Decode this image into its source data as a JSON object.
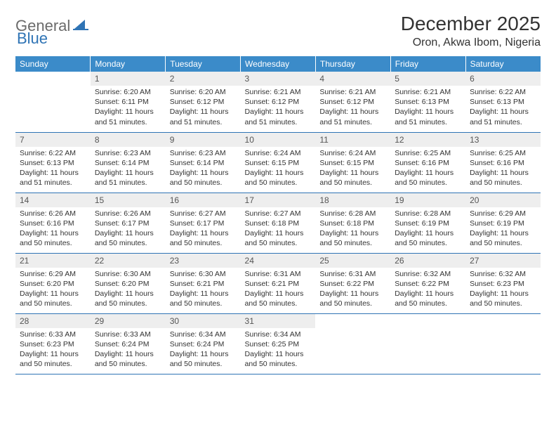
{
  "logo": {
    "text1": "General",
    "text2": "Blue"
  },
  "title": "December 2025",
  "location": "Oron, Akwa Ibom, Nigeria",
  "colors": {
    "header_bg": "#3b8bc9",
    "header_text": "#ffffff",
    "daynum_bg": "#eeeeee",
    "border": "#2f74b5",
    "body_text": "#333333",
    "logo_gray": "#6b6b6b",
    "logo_blue": "#2f74b5"
  },
  "day_headers": [
    "Sunday",
    "Monday",
    "Tuesday",
    "Wednesday",
    "Thursday",
    "Friday",
    "Saturday"
  ],
  "weeks": [
    [
      null,
      {
        "n": "1",
        "sr": "6:20 AM",
        "ss": "6:11 PM",
        "dl": "11 hours and 51 minutes."
      },
      {
        "n": "2",
        "sr": "6:20 AM",
        "ss": "6:12 PM",
        "dl": "11 hours and 51 minutes."
      },
      {
        "n": "3",
        "sr": "6:21 AM",
        "ss": "6:12 PM",
        "dl": "11 hours and 51 minutes."
      },
      {
        "n": "4",
        "sr": "6:21 AM",
        "ss": "6:12 PM",
        "dl": "11 hours and 51 minutes."
      },
      {
        "n": "5",
        "sr": "6:21 AM",
        "ss": "6:13 PM",
        "dl": "11 hours and 51 minutes."
      },
      {
        "n": "6",
        "sr": "6:22 AM",
        "ss": "6:13 PM",
        "dl": "11 hours and 51 minutes."
      }
    ],
    [
      {
        "n": "7",
        "sr": "6:22 AM",
        "ss": "6:13 PM",
        "dl": "11 hours and 51 minutes."
      },
      {
        "n": "8",
        "sr": "6:23 AM",
        "ss": "6:14 PM",
        "dl": "11 hours and 51 minutes."
      },
      {
        "n": "9",
        "sr": "6:23 AM",
        "ss": "6:14 PM",
        "dl": "11 hours and 50 minutes."
      },
      {
        "n": "10",
        "sr": "6:24 AM",
        "ss": "6:15 PM",
        "dl": "11 hours and 50 minutes."
      },
      {
        "n": "11",
        "sr": "6:24 AM",
        "ss": "6:15 PM",
        "dl": "11 hours and 50 minutes."
      },
      {
        "n": "12",
        "sr": "6:25 AM",
        "ss": "6:16 PM",
        "dl": "11 hours and 50 minutes."
      },
      {
        "n": "13",
        "sr": "6:25 AM",
        "ss": "6:16 PM",
        "dl": "11 hours and 50 minutes."
      }
    ],
    [
      {
        "n": "14",
        "sr": "6:26 AM",
        "ss": "6:16 PM",
        "dl": "11 hours and 50 minutes."
      },
      {
        "n": "15",
        "sr": "6:26 AM",
        "ss": "6:17 PM",
        "dl": "11 hours and 50 minutes."
      },
      {
        "n": "16",
        "sr": "6:27 AM",
        "ss": "6:17 PM",
        "dl": "11 hours and 50 minutes."
      },
      {
        "n": "17",
        "sr": "6:27 AM",
        "ss": "6:18 PM",
        "dl": "11 hours and 50 minutes."
      },
      {
        "n": "18",
        "sr": "6:28 AM",
        "ss": "6:18 PM",
        "dl": "11 hours and 50 minutes."
      },
      {
        "n": "19",
        "sr": "6:28 AM",
        "ss": "6:19 PM",
        "dl": "11 hours and 50 minutes."
      },
      {
        "n": "20",
        "sr": "6:29 AM",
        "ss": "6:19 PM",
        "dl": "11 hours and 50 minutes."
      }
    ],
    [
      {
        "n": "21",
        "sr": "6:29 AM",
        "ss": "6:20 PM",
        "dl": "11 hours and 50 minutes."
      },
      {
        "n": "22",
        "sr": "6:30 AM",
        "ss": "6:20 PM",
        "dl": "11 hours and 50 minutes."
      },
      {
        "n": "23",
        "sr": "6:30 AM",
        "ss": "6:21 PM",
        "dl": "11 hours and 50 minutes."
      },
      {
        "n": "24",
        "sr": "6:31 AM",
        "ss": "6:21 PM",
        "dl": "11 hours and 50 minutes."
      },
      {
        "n": "25",
        "sr": "6:31 AM",
        "ss": "6:22 PM",
        "dl": "11 hours and 50 minutes."
      },
      {
        "n": "26",
        "sr": "6:32 AM",
        "ss": "6:22 PM",
        "dl": "11 hours and 50 minutes."
      },
      {
        "n": "27",
        "sr": "6:32 AM",
        "ss": "6:23 PM",
        "dl": "11 hours and 50 minutes."
      }
    ],
    [
      {
        "n": "28",
        "sr": "6:33 AM",
        "ss": "6:23 PM",
        "dl": "11 hours and 50 minutes."
      },
      {
        "n": "29",
        "sr": "6:33 AM",
        "ss": "6:24 PM",
        "dl": "11 hours and 50 minutes."
      },
      {
        "n": "30",
        "sr": "6:34 AM",
        "ss": "6:24 PM",
        "dl": "11 hours and 50 minutes."
      },
      {
        "n": "31",
        "sr": "6:34 AM",
        "ss": "6:25 PM",
        "dl": "11 hours and 50 minutes."
      },
      null,
      null,
      null
    ]
  ],
  "labels": {
    "sunrise": "Sunrise:",
    "sunset": "Sunset:",
    "daylight": "Daylight:"
  }
}
